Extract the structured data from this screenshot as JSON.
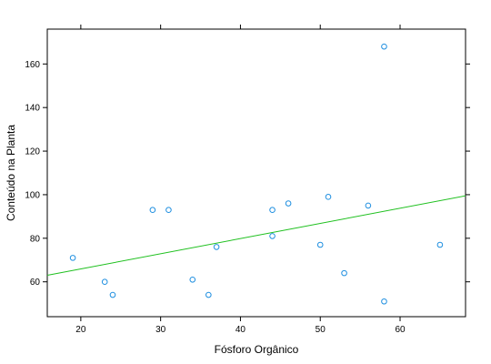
{
  "chart_data": {
    "type": "scatter",
    "title": "",
    "xlabel": "Fósforo Orgânico",
    "ylabel": "Conteúdo na Planta",
    "xlim": [
      15.8,
      68.2
    ],
    "ylim": [
      44,
      176
    ],
    "x_ticks": [
      20,
      30,
      40,
      50,
      60
    ],
    "y_ticks": [
      60,
      80,
      100,
      120,
      140,
      160
    ],
    "grid": false,
    "legend": "none",
    "points": [
      {
        "x": 19,
        "y": 71
      },
      {
        "x": 23,
        "y": 60
      },
      {
        "x": 24,
        "y": 54
      },
      {
        "x": 29,
        "y": 93
      },
      {
        "x": 31,
        "y": 93
      },
      {
        "x": 34,
        "y": 61
      },
      {
        "x": 36,
        "y": 54
      },
      {
        "x": 37,
        "y": 76
      },
      {
        "x": 44,
        "y": 81
      },
      {
        "x": 44,
        "y": 93
      },
      {
        "x": 46,
        "y": 96
      },
      {
        "x": 50,
        "y": 77
      },
      {
        "x": 51,
        "y": 99
      },
      {
        "x": 53,
        "y": 64
      },
      {
        "x": 56,
        "y": 95
      },
      {
        "x": 58,
        "y": 168
      },
      {
        "x": 58,
        "y": 51
      },
      {
        "x": 65,
        "y": 77
      }
    ],
    "regression_line": {
      "x": [
        15.8,
        68.2
      ],
      "y": [
        63.0,
        99.5
      ]
    },
    "colors": {
      "points": "#1f8fe0",
      "line": "#1fc01f",
      "axis": "#000000"
    }
  }
}
